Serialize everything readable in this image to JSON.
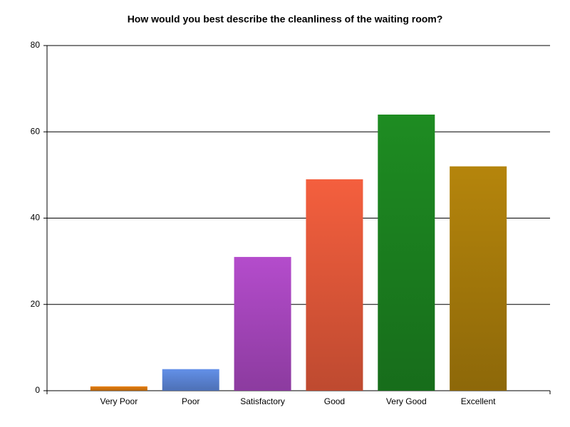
{
  "chart_data": {
    "type": "bar",
    "title": "How would you best describe the cleanliness of the waiting room?",
    "categories": [
      "Very Poor",
      "Poor",
      "Satisfactory",
      "Good",
      "Very Good",
      "Excellent"
    ],
    "values": [
      1,
      5,
      31,
      49,
      64,
      52
    ],
    "colors": [
      "#e8800f",
      "#6390e8",
      "#b44ccc",
      "#f45f3e",
      "#1e8c22",
      "#b5850c"
    ],
    "ylim": [
      0,
      80
    ],
    "yticks": [
      0,
      20,
      40,
      60,
      80
    ],
    "grid": true
  }
}
